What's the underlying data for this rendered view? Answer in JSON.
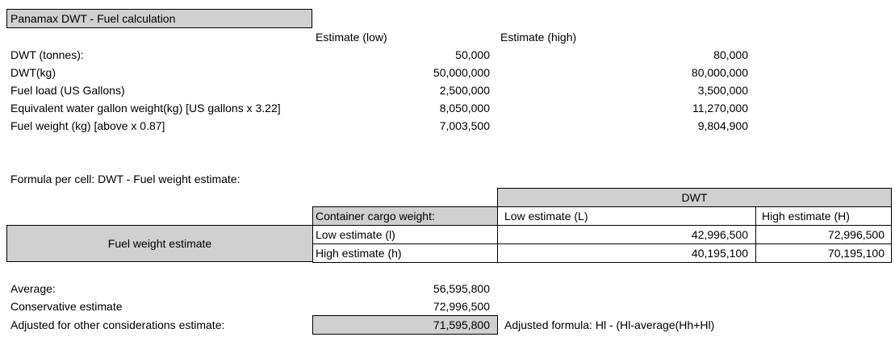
{
  "title": "Panamax DWT - Fuel calculation",
  "headers": {
    "low": "Estimate (low)",
    "high": "Estimate (high)"
  },
  "rows": [
    {
      "label": "DWT (tonnes):",
      "low": "50,000",
      "high": "80,000"
    },
    {
      "label": "DWT(kg)",
      "low": "50,000,000",
      "high": "80,000,000"
    },
    {
      "label": "Fuel load (US Gallons)",
      "low": "2,500,000",
      "high": "3,500,000"
    },
    {
      "label": "Equivalent water gallon weight(kg) [US gallons x 3.22]",
      "low": "8,050,000",
      "high": "11,270,000"
    },
    {
      "label": "Fuel weight (kg) [above x 0.87]",
      "low": "7,003,500",
      "high": "9,804,900"
    }
  ],
  "formula_note": "Formula per cell: DWT - Fuel weight estimate:",
  "matrix": {
    "dwt_header": "DWT",
    "corner": "Container cargo weight:",
    "col_low": "Low estimate (L)",
    "col_high": "High estimate (H)",
    "row_group": "Fuel weight estimate",
    "row_low": "Low estimate (l)",
    "row_high": "High estimate (h)",
    "ll": "42,996,500",
    "lh": "72,996,500",
    "hl": "40,195,100",
    "hh": "70,195,100"
  },
  "summary": {
    "average_label": "Average:",
    "average_value": "56,595,800",
    "conservative_label": "Conservative estimate",
    "conservative_value": "72,996,500",
    "adjusted_label": "Adjusted for other considerations estimate:",
    "adjusted_value": "71,595,800",
    "adjusted_formula": "Adjusted formula: Hl - (Hl-average(Hh+Hl)"
  }
}
